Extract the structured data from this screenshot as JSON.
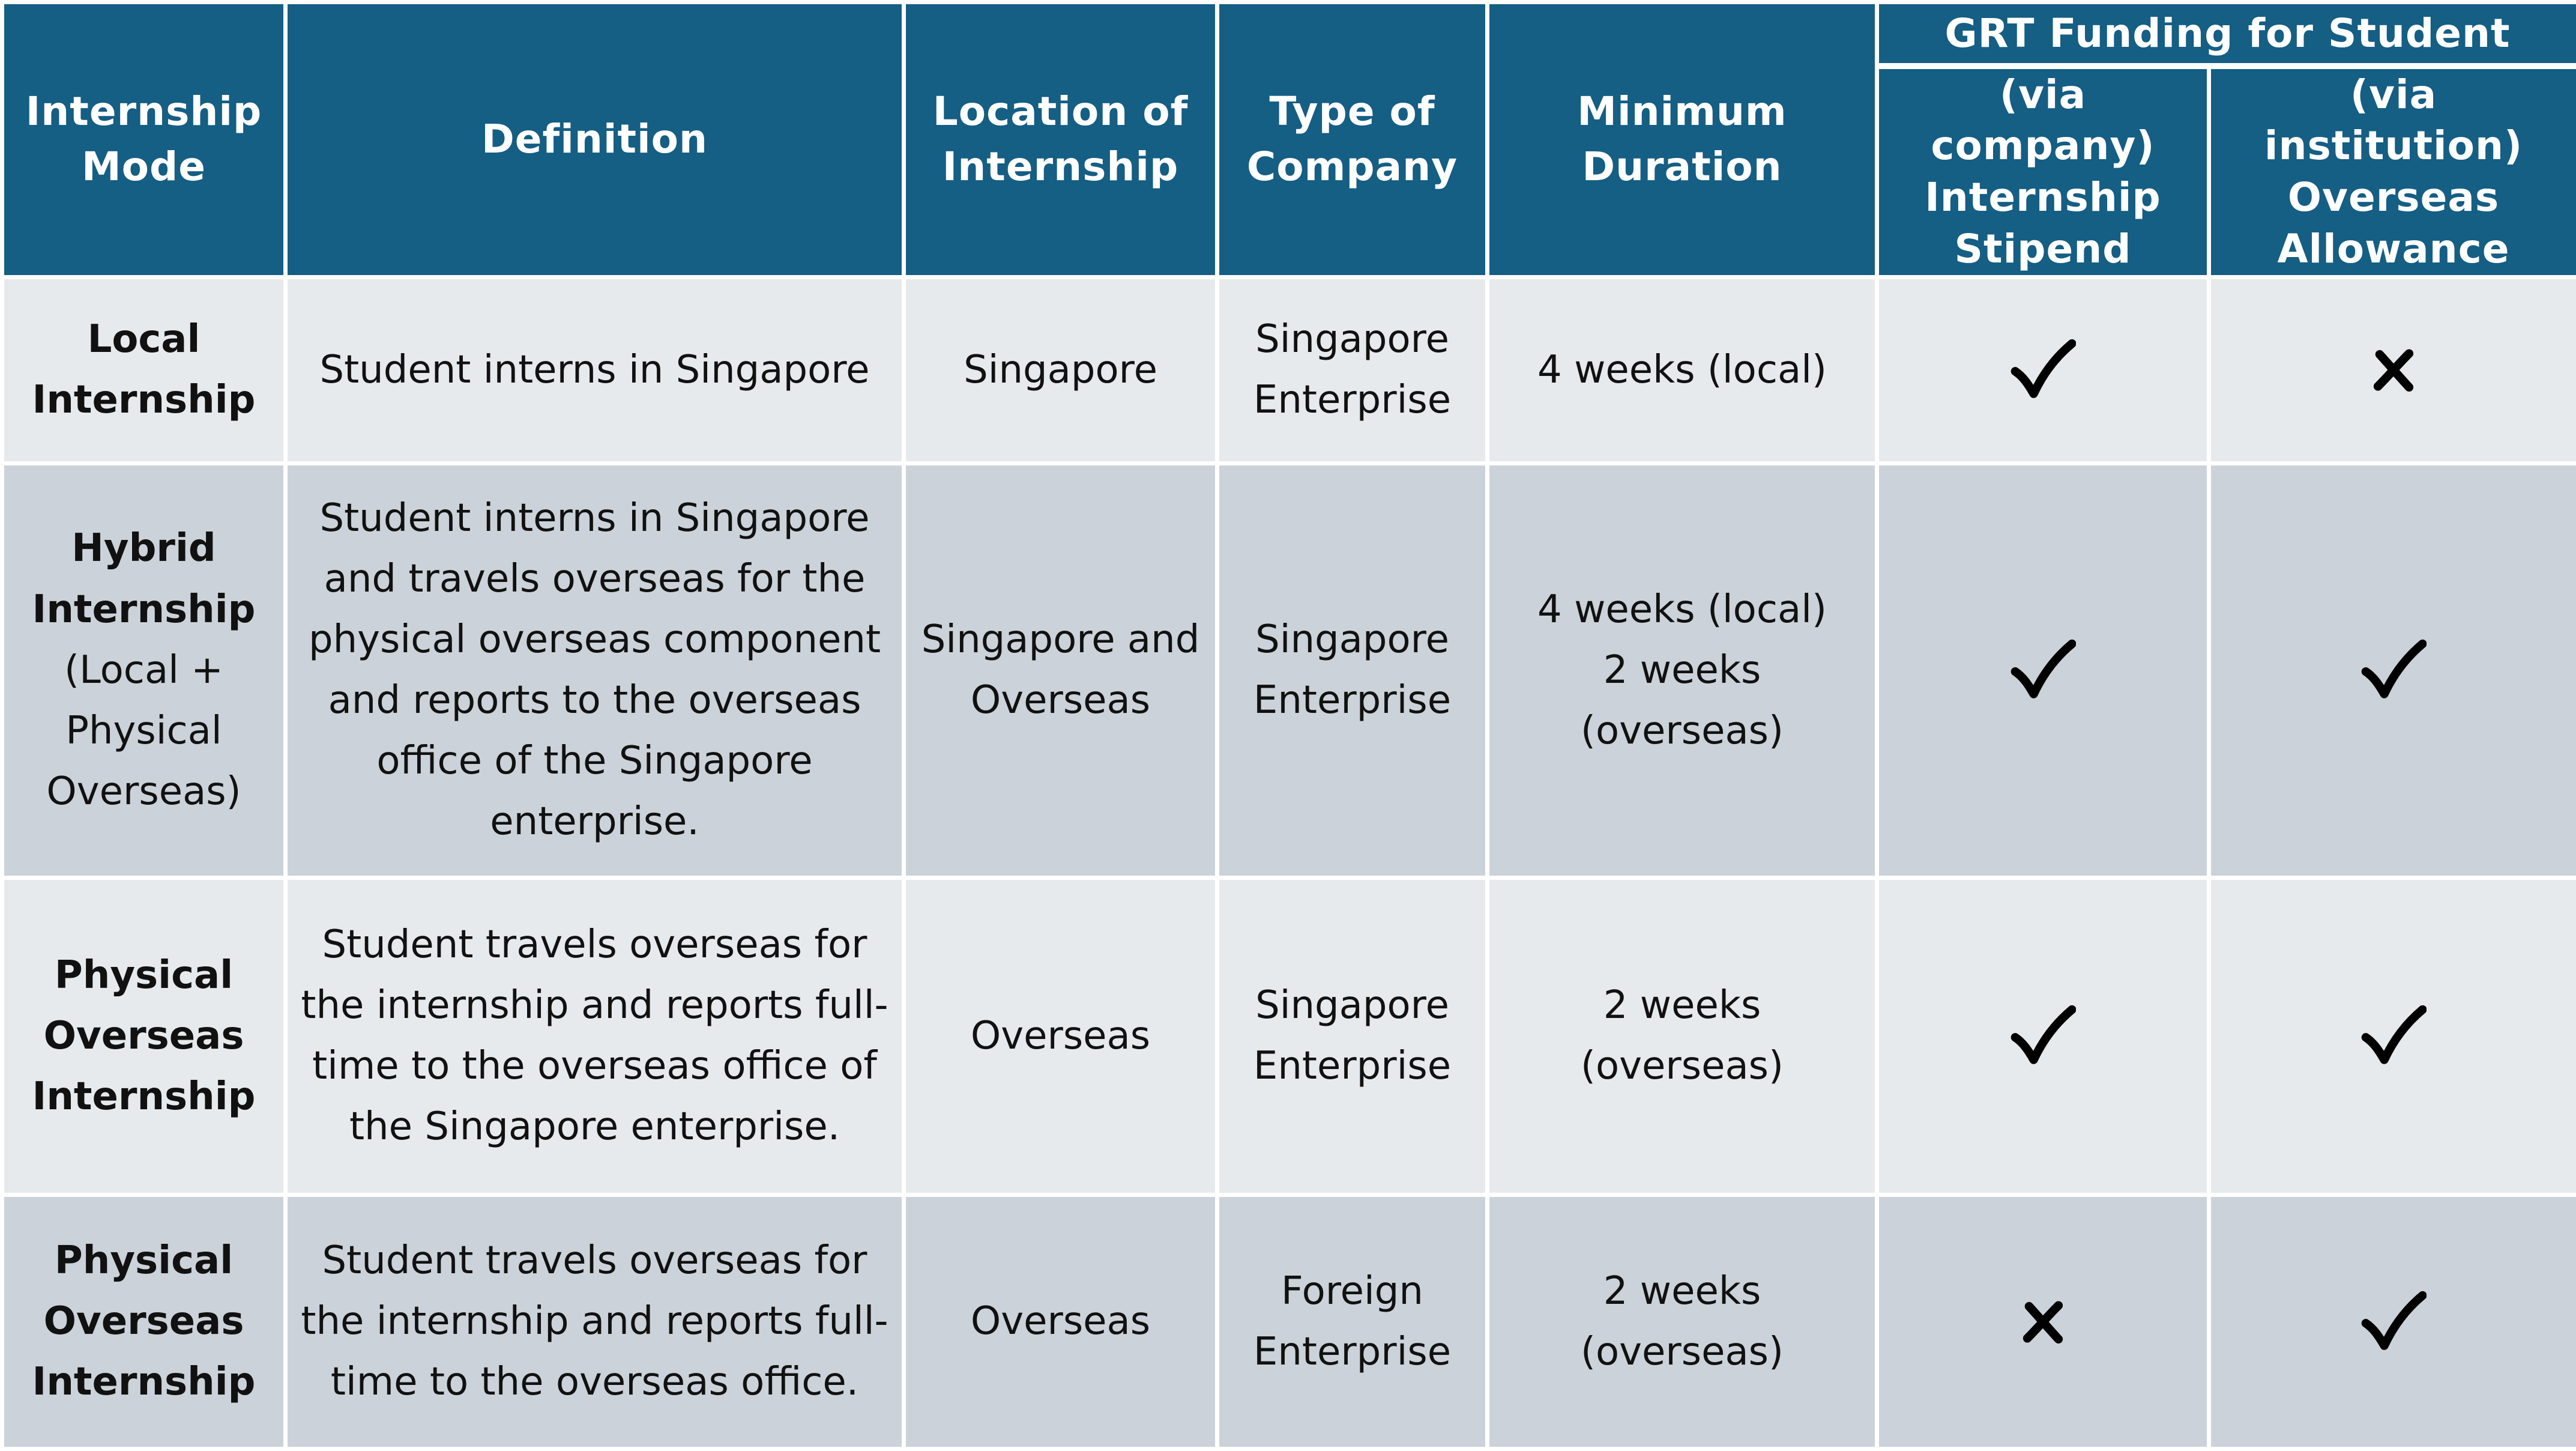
{
  "header": {
    "mode": "Internship Mode",
    "definition": "Definition",
    "location": "Location of Internship",
    "company_type": "Type of Company",
    "duration": "Minimum Duration",
    "grt_title": "GRT Funding for Student",
    "stipend": "(via company) Internship Stipend",
    "allowance": "(via institution) Overseas Allowance"
  },
  "rows": [
    {
      "mode_bold": "Local Internship",
      "mode_extra": "",
      "definition": "Student interns in Singapore",
      "location": "Singapore",
      "company_type": "Singapore Enterprise",
      "duration_1": "4 weeks (local)",
      "duration_2": "",
      "stipend_icon": "check-icon",
      "allowance_icon": "cross-icon"
    },
    {
      "mode_bold": "Hybrid Internship",
      "mode_extra": "(Local + Physical Overseas)",
      "definition": "Student interns in Singapore and travels overseas for the physical overseas component and reports to the overseas office of the Singapore enterprise.",
      "location": "Singapore and Overseas",
      "company_type": "Singapore Enterprise",
      "duration_1": "4 weeks (local)",
      "duration_2": "2 weeks (overseas)",
      "stipend_icon": "check-icon",
      "allowance_icon": "check-icon"
    },
    {
      "mode_bold": "Physical Overseas Internship",
      "mode_extra": "",
      "definition": "Student travels overseas for the internship and reports full-time to the overseas office of the Singapore enterprise.",
      "location": "Overseas",
      "company_type": "Singapore Enterprise",
      "duration_1": "2 weeks (overseas)",
      "duration_2": "",
      "stipend_icon": "check-icon",
      "allowance_icon": "check-icon"
    },
    {
      "mode_bold": "Physical Overseas Internship",
      "mode_extra": "",
      "definition": "Student travels overseas for the internship and reports full-time to the overseas office.",
      "location": "Overseas",
      "company_type": "Foreign Enterprise",
      "duration_1": "2 weeks (overseas)",
      "duration_2": "",
      "stipend_icon": "cross-icon",
      "allowance_icon": "check-icon"
    }
  ],
  "colors": {
    "header_bg": "#155e84",
    "row_light": "#e7eaed",
    "row_dark": "#ccd2d9"
  }
}
